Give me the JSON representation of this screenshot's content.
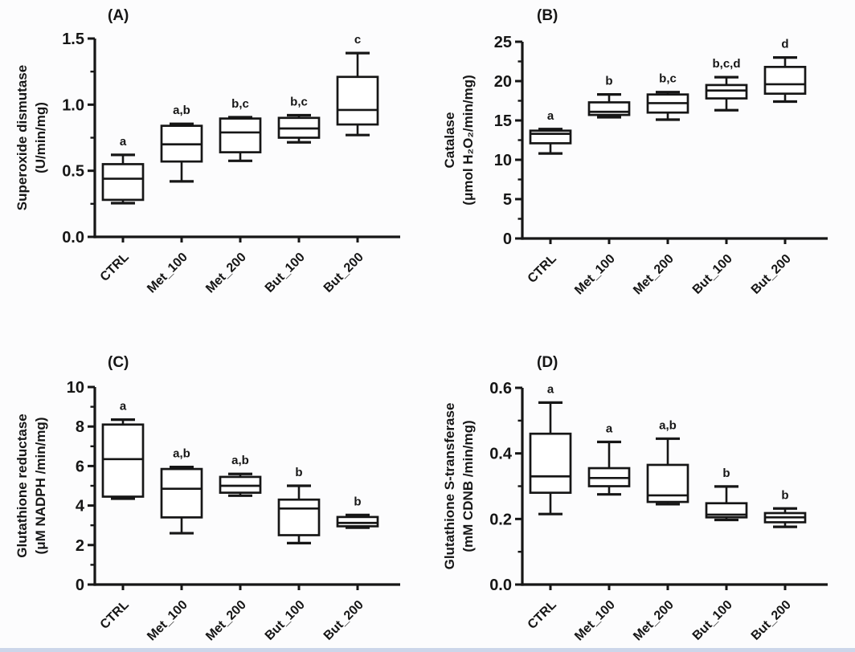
{
  "figure": {
    "background": "#fcfcfd",
    "plot_background": "#ffffff",
    "line_color": "#161616",
    "bottom_border_color": "#ccd6ea"
  },
  "chart_data": [
    {
      "type": "box",
      "panel_label": "(A)",
      "ylabel_lines": [
        "Superoxide dismutase",
        "(U/min/mg)"
      ],
      "ylim": [
        0,
        1.5
      ],
      "ytick_values": [
        0,
        0.5,
        1.0,
        1.5
      ],
      "ytick_labels": [
        "0.0",
        "0.5",
        "1.0",
        "1.5"
      ],
      "minor_ticks": true,
      "grid": false,
      "legend": "none",
      "categories": [
        "CTRL",
        "Met_100",
        "Met_200",
        "But_100",
        "But_200"
      ],
      "boxes": [
        {
          "category": "CTRL",
          "low": 0.255,
          "q1": 0.28,
          "median": 0.44,
          "q3": 0.55,
          "high": 0.62,
          "sig": "a"
        },
        {
          "category": "Met_100",
          "low": 0.42,
          "q1": 0.57,
          "median": 0.7,
          "q3": 0.84,
          "high": 0.855,
          "sig": "a,b"
        },
        {
          "category": "Met_200",
          "low": 0.575,
          "q1": 0.64,
          "median": 0.79,
          "q3": 0.895,
          "high": 0.905,
          "sig": "b,c"
        },
        {
          "category": "But_100",
          "low": 0.715,
          "q1": 0.75,
          "median": 0.82,
          "q3": 0.9,
          "high": 0.92,
          "sig": "b,c"
        },
        {
          "category": "But_200",
          "low": 0.77,
          "q1": 0.85,
          "median": 0.96,
          "q3": 1.21,
          "high": 1.39,
          "sig": "c"
        }
      ]
    },
    {
      "type": "box",
      "panel_label": "(B)",
      "ylabel_lines": [
        "Catalase",
        "(μmol H₂O₂/min/mg)"
      ],
      "ylim": [
        0,
        25
      ],
      "ytick_values": [
        0,
        5,
        10,
        15,
        20,
        25
      ],
      "ytick_labels": [
        "0",
        "5",
        "10",
        "15",
        "20",
        "25"
      ],
      "minor_ticks": true,
      "grid": false,
      "legend": "none",
      "categories": [
        "CTRL",
        "Met_100",
        "Met_200",
        "But_100",
        "But_200"
      ],
      "boxes": [
        {
          "category": "CTRL",
          "low": 10.8,
          "q1": 12.1,
          "median": 13.3,
          "q3": 13.7,
          "high": 13.9,
          "sig": "a"
        },
        {
          "category": "Met_100",
          "low": 15.4,
          "q1": 15.7,
          "median": 16.1,
          "q3": 17.3,
          "high": 18.3,
          "sig": "b"
        },
        {
          "category": "Met_200",
          "low": 15.1,
          "q1": 16.0,
          "median": 17.2,
          "q3": 18.3,
          "high": 18.6,
          "sig": "b,c"
        },
        {
          "category": "But_100",
          "low": 16.3,
          "q1": 17.8,
          "median": 18.8,
          "q3": 19.5,
          "high": 20.5,
          "sig": "b,c,d"
        },
        {
          "category": "But_200",
          "low": 17.4,
          "q1": 18.4,
          "median": 19.6,
          "q3": 21.8,
          "high": 23.0,
          "sig": "d"
        }
      ]
    },
    {
      "type": "box",
      "panel_label": "(C)",
      "ylabel_lines": [
        "Glutathione reductase",
        "(μM NADPH /min/mg)"
      ],
      "ylim": [
        0,
        10
      ],
      "ytick_values": [
        0,
        2,
        4,
        6,
        8,
        10
      ],
      "ytick_labels": [
        "0",
        "2",
        "4",
        "6",
        "8",
        "10"
      ],
      "minor_ticks": true,
      "grid": false,
      "legend": "none",
      "categories": [
        "CTRL",
        "Met_100",
        "Met_200",
        "But_100",
        "But_200"
      ],
      "boxes": [
        {
          "category": "CTRL",
          "low": 4.35,
          "q1": 4.45,
          "median": 6.35,
          "q3": 8.1,
          "high": 8.35,
          "sig": "a"
        },
        {
          "category": "Met_100",
          "low": 2.6,
          "q1": 3.4,
          "median": 4.85,
          "q3": 5.85,
          "high": 5.95,
          "sig": "a,b"
        },
        {
          "category": "Met_200",
          "low": 4.5,
          "q1": 4.65,
          "median": 5.0,
          "q3": 5.45,
          "high": 5.6,
          "sig": "a,b"
        },
        {
          "category": "But_100",
          "low": 2.1,
          "q1": 2.5,
          "median": 3.85,
          "q3": 4.3,
          "high": 5.0,
          "sig": "b"
        },
        {
          "category": "But_200",
          "low": 2.88,
          "q1": 2.95,
          "median": 3.12,
          "q3": 3.42,
          "high": 3.52,
          "sig": "b"
        }
      ]
    },
    {
      "type": "box",
      "panel_label": "(D)",
      "ylabel_lines": [
        "Glutathione S-transferase",
        "(mM CDNB /min/mg)"
      ],
      "ylim": [
        0,
        0.6
      ],
      "ytick_values": [
        0,
        0.2,
        0.4,
        0.6
      ],
      "ytick_labels": [
        "0.0",
        "0.2",
        "0.4",
        "0.6"
      ],
      "minor_ticks": true,
      "grid": false,
      "legend": "none",
      "categories": [
        "CTRL",
        "Met_100",
        "Met_200",
        "But_100",
        "But_200"
      ],
      "boxes": [
        {
          "category": "CTRL",
          "low": 0.215,
          "q1": 0.28,
          "median": 0.33,
          "q3": 0.46,
          "high": 0.555,
          "sig": "a"
        },
        {
          "category": "Met_100",
          "low": 0.275,
          "q1": 0.3,
          "median": 0.325,
          "q3": 0.355,
          "high": 0.435,
          "sig": "a"
        },
        {
          "category": "Met_200",
          "low": 0.245,
          "q1": 0.252,
          "median": 0.272,
          "q3": 0.365,
          "high": 0.445,
          "sig": "a,b"
        },
        {
          "category": "But_100",
          "low": 0.197,
          "q1": 0.205,
          "median": 0.213,
          "q3": 0.248,
          "high": 0.299,
          "sig": "b"
        },
        {
          "category": "But_200",
          "low": 0.176,
          "q1": 0.19,
          "median": 0.205,
          "q3": 0.218,
          "high": 0.232,
          "sig": "b"
        }
      ]
    }
  ]
}
